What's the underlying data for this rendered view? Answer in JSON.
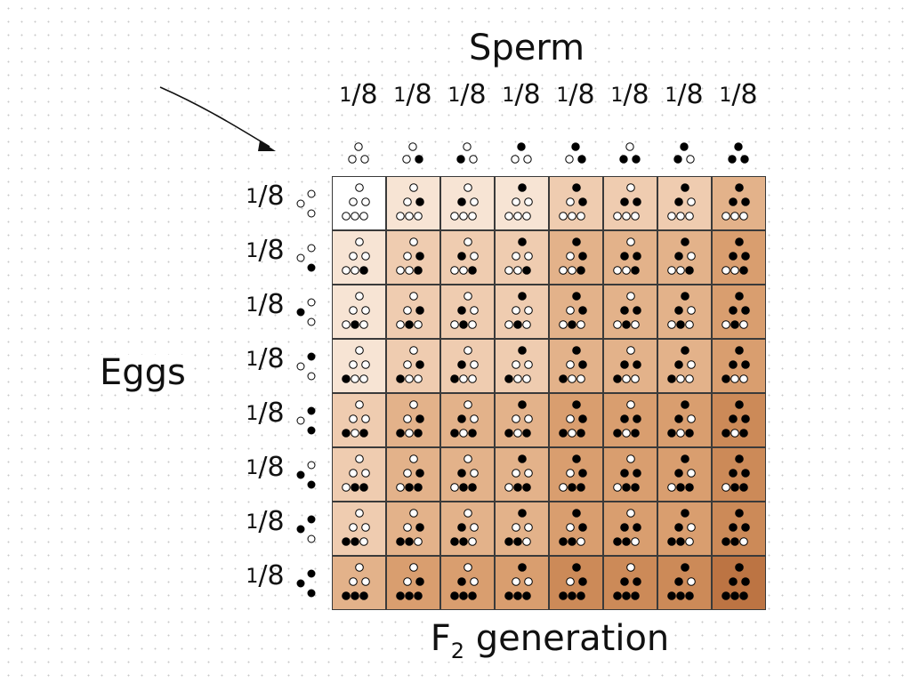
{
  "title": "Sperm",
  "row_label": "Eggs",
  "footer_label": "F2 generation",
  "footer_label_parts": {
    "main": "F",
    "subscript": "2",
    "rest": " generation"
  },
  "fraction": {
    "numerator": "1",
    "denominator": "8"
  },
  "allele_colors": {
    "dark": "#000000",
    "light": "#ffffff"
  },
  "shade_scale": [
    "#ffffff",
    "#f7e4d4",
    "#efccb0",
    "#e3b28a",
    "#d99e6f",
    "#cc8a58",
    "#bc7443"
  ],
  "gametes": [
    {
      "alleles": [
        0,
        0,
        0
      ]
    },
    {
      "alleles": [
        0,
        0,
        1
      ]
    },
    {
      "alleles": [
        0,
        1,
        0
      ]
    },
    {
      "alleles": [
        1,
        0,
        0
      ]
    },
    {
      "alleles": [
        1,
        0,
        1
      ]
    },
    {
      "alleles": [
        0,
        1,
        1
      ]
    },
    {
      "alleles": [
        1,
        1,
        0
      ]
    },
    {
      "alleles": [
        1,
        1,
        1
      ]
    }
  ]
}
